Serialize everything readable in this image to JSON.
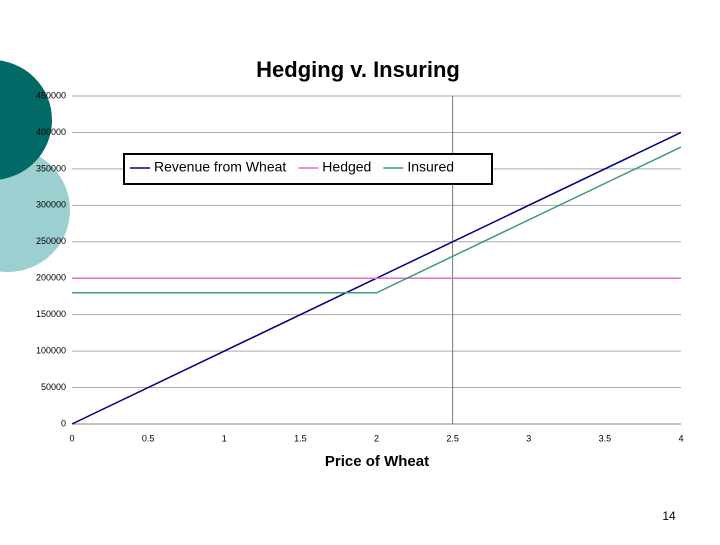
{
  "chart_data": {
    "type": "line",
    "title": "Hedging v. Insuring",
    "x_label": "Price of Wheat",
    "x": [
      0,
      2,
      4
    ],
    "series": [
      {
        "name": "Revenue from Wheat",
        "color": "#000080",
        "values": [
          0,
          200000,
          400000
        ]
      },
      {
        "name": "Hedged",
        "color": "#e070c8",
        "values": [
          200000,
          200000,
          200000
        ]
      },
      {
        "name": "Insured",
        "color": "#3f9a78",
        "values": [
          180000,
          180000,
          380000
        ]
      }
    ],
    "xlim": [
      0,
      4
    ],
    "xticks": [
      0,
      0.5,
      1,
      1.5,
      2,
      2.5,
      3,
      3.5,
      4
    ],
    "ylim": [
      0,
      450000
    ],
    "yticks": [
      0,
      50000,
      100000,
      150000,
      200000,
      250000,
      300000,
      350000,
      400000,
      450000
    ],
    "vline": 2.5,
    "grid": true,
    "legend": "top"
  },
  "slide_number": "14"
}
